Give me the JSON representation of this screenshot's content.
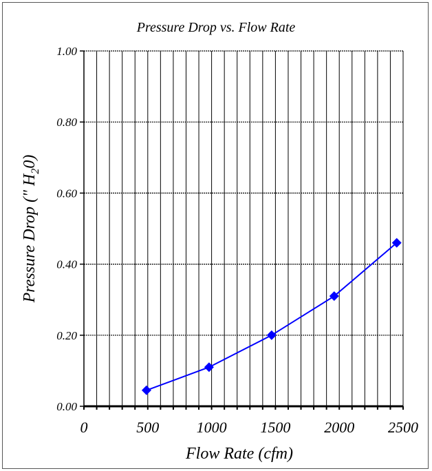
{
  "chart_data": {
    "type": "line",
    "title": "Pressure Drop vs. Flow Rate",
    "xlabel": "Flow Rate (cfm)",
    "ylabel_parts": {
      "main": "Pressure Drop (\" H",
      "sub": "2",
      "tail": "0)"
    },
    "xlim": [
      0,
      2500
    ],
    "ylim": [
      0,
      1.0
    ],
    "x_ticks": [
      "0",
      "500",
      "1000",
      "1500",
      "2000",
      "2500"
    ],
    "y_ticks": [
      "0.00",
      "0.20",
      "0.40",
      "0.60",
      "0.80",
      "1.00"
    ],
    "grid": true,
    "series": [
      {
        "color": "#0000ff",
        "marker": "diamond",
        "x": [
          490,
          980,
          1470,
          1960,
          2450
        ],
        "y": [
          0.045,
          0.11,
          0.2,
          0.31,
          0.46
        ]
      }
    ]
  }
}
